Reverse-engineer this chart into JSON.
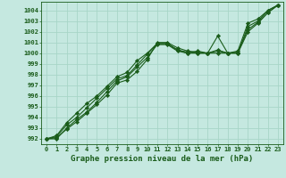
{
  "title": "Graphe pression niveau de la mer (hPa)",
  "background_color": "#c5e8e0",
  "grid_color": "#a8d5c8",
  "line_color": "#1a5c1a",
  "marker_color": "#1a5c1a",
  "x_values": [
    0,
    1,
    2,
    3,
    4,
    5,
    6,
    7,
    8,
    9,
    10,
    11,
    12,
    13,
    14,
    15,
    16,
    17,
    18,
    19,
    20,
    21,
    22,
    23
  ],
  "series": [
    [
      992.0,
      992.1,
      992.9,
      993.6,
      994.4,
      995.2,
      996.1,
      997.2,
      997.5,
      998.3,
      999.4,
      1001.0,
      1001.0,
      1000.5,
      1000.2,
      1000.1,
      1000.0,
      1001.6,
      1000.0,
      1000.2,
      1002.8,
      1003.2,
      1004.0,
      1004.5
    ],
    [
      992.0,
      992.0,
      993.0,
      993.8,
      994.5,
      995.4,
      996.4,
      997.4,
      997.8,
      998.7,
      999.6,
      1000.8,
      1000.8,
      1000.2,
      1000.0,
      1000.0,
      1000.0,
      1000.0,
      1000.0,
      1000.0,
      1002.0,
      1002.8,
      1003.8,
      1004.5
    ],
    [
      992.0,
      992.2,
      993.3,
      994.0,
      994.9,
      995.8,
      996.7,
      997.6,
      997.9,
      998.9,
      999.9,
      1000.9,
      1000.9,
      1000.3,
      1000.1,
      1000.0,
      1000.0,
      1000.2,
      1000.0,
      1000.1,
      1002.2,
      1002.9,
      1003.8,
      1004.5
    ],
    [
      992.0,
      992.3,
      993.5,
      994.4,
      995.3,
      996.0,
      996.9,
      997.8,
      998.2,
      999.3,
      1000.0,
      1000.9,
      1000.9,
      1000.3,
      1000.0,
      1000.2,
      1000.0,
      1000.3,
      1000.0,
      1000.0,
      1002.5,
      1003.0,
      1004.0,
      1004.5
    ]
  ],
  "ylim": [
    991.5,
    1004.8
  ],
  "yticks": [
    992,
    993,
    994,
    995,
    996,
    997,
    998,
    999,
    1000,
    1001,
    1002,
    1003,
    1004
  ],
  "xlim": [
    -0.5,
    23.5
  ],
  "xticks": [
    0,
    1,
    2,
    3,
    4,
    5,
    6,
    7,
    8,
    9,
    10,
    11,
    12,
    13,
    14,
    15,
    16,
    17,
    18,
    19,
    20,
    21,
    22,
    23
  ],
  "title_fontsize": 6.5,
  "tick_fontsize": 5.0,
  "line_width": 0.8,
  "marker_size": 2.2,
  "marker": "D"
}
